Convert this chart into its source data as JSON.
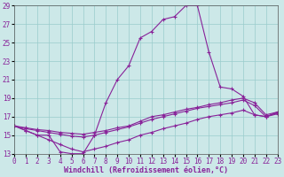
{
  "background_color": "#cce8e8",
  "grid_color": "#99cccc",
  "line_color": "#882299",
  "xlabel": "Windchill (Refroidissement éolien,°C)",
  "xlabel_fontsize": 6,
  "tick_fontsize": 5.5,
  "xlim": [
    0,
    23
  ],
  "ylim": [
    13,
    29
  ],
  "yticks": [
    13,
    15,
    17,
    19,
    21,
    23,
    25,
    27,
    29
  ],
  "xticks": [
    0,
    1,
    2,
    3,
    4,
    5,
    6,
    7,
    8,
    9,
    10,
    11,
    12,
    13,
    14,
    15,
    16,
    17,
    18,
    19,
    20,
    21,
    22,
    23
  ],
  "line1_x": [
    0,
    1,
    2,
    3,
    4,
    5,
    6,
    7,
    8,
    9,
    10,
    11,
    12,
    13,
    14,
    15,
    16,
    17,
    18,
    19,
    20,
    21,
    22,
    23
  ],
  "line1_y": [
    16.0,
    15.5,
    15.0,
    15.0,
    13.2,
    13.0,
    13.0,
    15.0,
    18.5,
    21.0,
    22.5,
    25.5,
    26.2,
    27.5,
    27.8,
    29.0,
    29.0,
    24.0,
    20.2,
    20.0,
    19.2,
    17.2,
    17.0,
    17.5
  ],
  "line2_x": [
    0,
    1,
    2,
    3,
    4,
    5,
    6,
    7,
    8,
    9,
    10,
    11,
    12,
    13,
    14,
    15,
    16,
    17,
    18,
    19,
    20,
    21,
    22,
    23
  ],
  "line2_y": [
    16.0,
    15.8,
    15.6,
    15.5,
    15.3,
    15.2,
    15.1,
    15.3,
    15.5,
    15.8,
    16.0,
    16.5,
    17.0,
    17.2,
    17.5,
    17.8,
    18.0,
    18.3,
    18.5,
    18.8,
    19.0,
    18.5,
    17.2,
    17.5
  ],
  "line3_x": [
    0,
    1,
    2,
    3,
    4,
    5,
    6,
    7,
    8,
    9,
    10,
    11,
    12,
    13,
    14,
    15,
    16,
    17,
    18,
    19,
    20,
    21,
    22,
    23
  ],
  "line3_y": [
    16.0,
    15.7,
    15.5,
    15.3,
    15.1,
    14.9,
    14.8,
    15.0,
    15.3,
    15.6,
    15.9,
    16.3,
    16.7,
    17.0,
    17.3,
    17.6,
    17.9,
    18.1,
    18.3,
    18.5,
    18.8,
    18.2,
    17.0,
    17.4
  ],
  "line4_x": [
    0,
    1,
    2,
    3,
    4,
    5,
    6,
    7,
    8,
    9,
    10,
    11,
    12,
    13,
    14,
    15,
    16,
    17,
    18,
    19,
    20,
    21,
    22,
    23
  ],
  "line4_y": [
    16.0,
    15.5,
    15.0,
    14.5,
    14.0,
    13.5,
    13.2,
    13.5,
    13.8,
    14.2,
    14.5,
    15.0,
    15.3,
    15.7,
    16.0,
    16.3,
    16.7,
    17.0,
    17.2,
    17.4,
    17.7,
    17.2,
    17.0,
    17.3
  ]
}
